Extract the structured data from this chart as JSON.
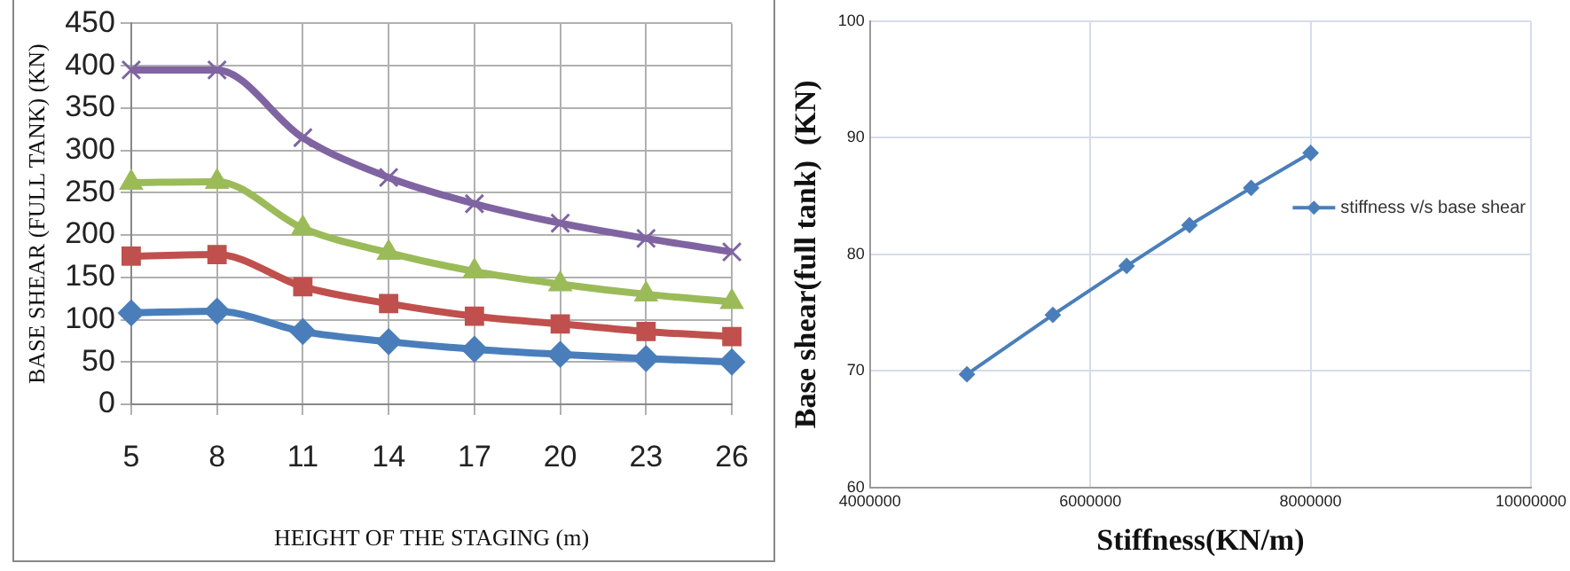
{
  "chart_data": [
    {
      "type": "line",
      "xlabel": "HEIGHT OF THE STAGING (m)",
      "ylabel": "BASE SHEAR (FULL TANK) (KN)",
      "categories": [
        "5",
        "8",
        "11",
        "14",
        "17",
        "20",
        "23",
        "26"
      ],
      "series": [
        {
          "color": "#4a7ebb",
          "marker": "diamond",
          "values": [
            108,
            110,
            86,
            74,
            65,
            59,
            54,
            50
          ]
        },
        {
          "color": "#c0504d",
          "marker": "square",
          "values": [
            175,
            177,
            139,
            119,
            104,
            95,
            86,
            80
          ]
        },
        {
          "color": "#9bbb59",
          "marker": "triangle",
          "values": [
            262,
            263,
            208,
            179,
            157,
            142,
            130,
            121
          ]
        },
        {
          "color": "#8064a2",
          "marker": "cross",
          "values": [
            395,
            395,
            315,
            268,
            237,
            214,
            196,
            180
          ]
        }
      ],
      "ylim": [
        0,
        450
      ],
      "yticks": [
        0,
        50,
        100,
        150,
        200,
        250,
        300,
        350,
        400,
        450
      ],
      "grid": true,
      "legend": false
    },
    {
      "type": "line",
      "xlabel": "Stiffness(KN/m)",
      "ylabel": "Base shear(full tank)  (KN)",
      "series": [
        {
          "name": "stiffness v/s base shear",
          "color": "#4a7ebb",
          "marker": "diamond",
          "x": [
            4880000,
            5660000,
            6330000,
            6900000,
            7460000,
            8000000
          ],
          "values": [
            69.7,
            74.8,
            79.0,
            82.5,
            85.7,
            88.7
          ]
        }
      ],
      "xlim": [
        4000000,
        10000000
      ],
      "xticks": [
        4000000,
        6000000,
        8000000,
        10000000
      ],
      "ylim": [
        60,
        100
      ],
      "yticks": [
        60,
        70,
        80,
        90,
        100
      ],
      "grid": true,
      "legend": "top right"
    }
  ]
}
